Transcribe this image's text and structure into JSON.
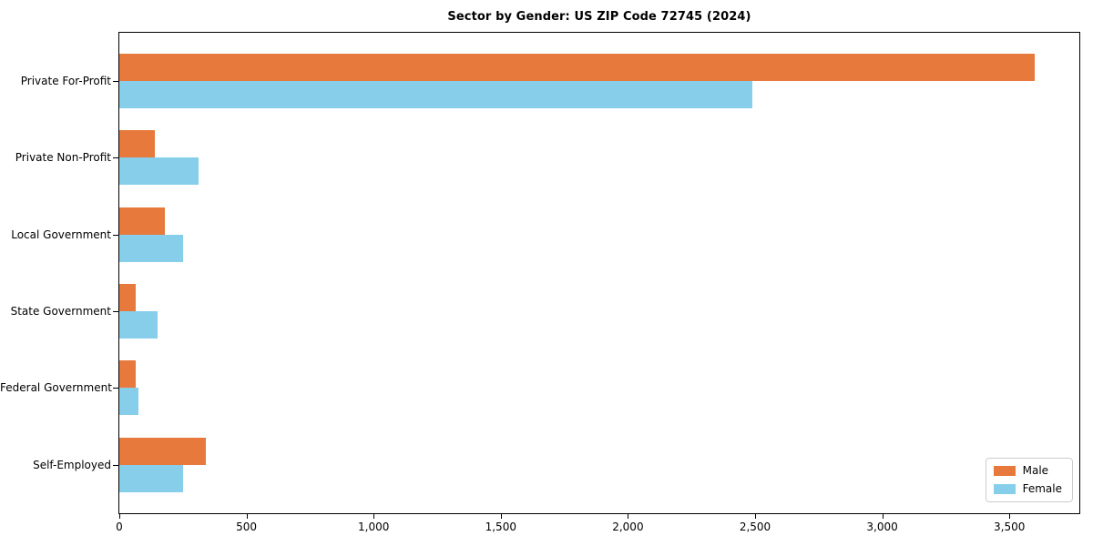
{
  "chart_data": {
    "type": "bar",
    "orientation": "horizontal",
    "title": "Sector by Gender: US ZIP Code 72745 (2024)",
    "categories": [
      "Private For-Profit",
      "Private Non-Profit",
      "Local Government",
      "State Government",
      "Federal Government",
      "Self-Employed"
    ],
    "series": [
      {
        "name": "Male",
        "color": "#e8793d",
        "values": [
          3600,
          140,
          180,
          65,
          65,
          340
        ]
      },
      {
        "name": "Female",
        "color": "#87ceeb",
        "values": [
          2490,
          310,
          250,
          150,
          75,
          250
        ]
      }
    ],
    "xlabel": "",
    "ylabel": "",
    "x_ticks": [
      0,
      500,
      1000,
      1500,
      2000,
      2500,
      3000,
      3500
    ],
    "x_tick_labels": [
      "0",
      "500",
      "1,000",
      "1,500",
      "2,000",
      "2,500",
      "3,000",
      "3,500"
    ],
    "xlim": [
      0,
      3775
    ],
    "grid": false,
    "legend": {
      "position": "lower right",
      "entries": [
        "Male",
        "Female"
      ]
    },
    "colors": {
      "male": "#e8793d",
      "female": "#87ceeb",
      "spine": "#000000",
      "legend_border": "#cccccc",
      "background": "#ffffff"
    }
  }
}
